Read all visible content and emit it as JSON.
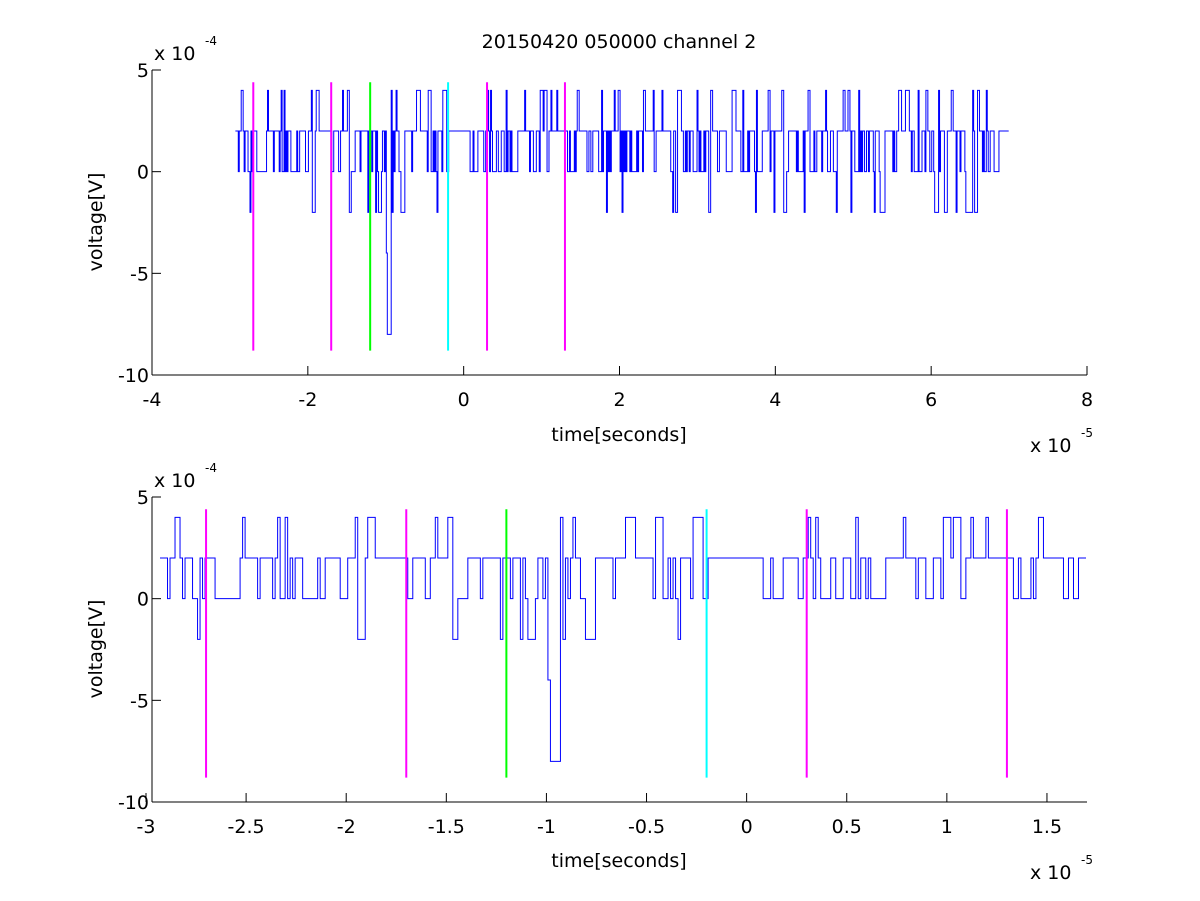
{
  "figure": {
    "title": "20150420 050000 channel 2"
  },
  "chart_data": [
    {
      "type": "line",
      "xlabel": "time[seconds]",
      "ylabel": "voltage[V]",
      "x_exponent_label": "x 10",
      "x_exponent": "-5",
      "y_exponent_label": "x 10",
      "y_exponent": "-4",
      "xlim": [
        -4,
        8
      ],
      "ylim": [
        -10,
        5
      ],
      "xticks": [
        -4,
        -2,
        0,
        2,
        4,
        6,
        8
      ],
      "xtick_labels": [
        "-4",
        "-2",
        "0",
        "2",
        "4",
        "6",
        "8"
      ],
      "yticks": [
        -10,
        -5,
        0,
        5
      ],
      "ytick_labels": [
        "-10",
        "-5",
        "0",
        "5"
      ],
      "grid": false,
      "signal": {
        "color": "#0000ff",
        "x_start": -2.93,
        "x_end": 7.0,
        "dt": 0.0125,
        "levels": [
          -2,
          0,
          2,
          4
        ],
        "dip": {
          "x": -0.98,
          "y": -8
        }
      },
      "markers": [
        {
          "x": -2.7,
          "color": "#ff00ff",
          "y_top": 4.4,
          "y_bottom": -8.8
        },
        {
          "x": -1.7,
          "color": "#ff00ff",
          "y_top": 4.4,
          "y_bottom": -8.8
        },
        {
          "x": -1.2,
          "color": "#00ff00",
          "y_top": 4.4,
          "y_bottom": -8.8
        },
        {
          "x": -0.2,
          "color": "#00ffff",
          "y_top": 4.4,
          "y_bottom": -8.8
        },
        {
          "x": 0.3,
          "color": "#ff00ff",
          "y_top": 4.4,
          "y_bottom": -8.8
        },
        {
          "x": 1.3,
          "color": "#ff00ff",
          "y_top": 4.4,
          "y_bottom": -8.8
        }
      ]
    },
    {
      "type": "line",
      "xlabel": "time[seconds]",
      "ylabel": "voltage[V]",
      "x_exponent_label": "x 10",
      "x_exponent": "-5",
      "y_exponent_label": "x 10",
      "y_exponent": "-4",
      "xlim": [
        -2.97,
        1.7
      ],
      "ylim": [
        -10,
        5
      ],
      "xticks": [
        -3,
        -2.5,
        -2,
        -1.5,
        -1,
        -0.5,
        0,
        0.5,
        1,
        1.5
      ],
      "xtick_labels": [
        "-3",
        "-2.5",
        "-2",
        "-1.5",
        "-1",
        "-0.5",
        "0",
        "0.5",
        "1",
        "1.5"
      ],
      "yticks": [
        -10,
        -5,
        0,
        5
      ],
      "ytick_labels": [
        "-10",
        "-5",
        "0",
        "5"
      ],
      "grid": false,
      "signal": {
        "color": "#0000ff",
        "x_start": -2.93,
        "x_end": 1.7,
        "dt": 0.0125,
        "levels": [
          -2,
          0,
          2,
          4
        ],
        "dip": {
          "x": -0.98,
          "y": -8
        }
      },
      "markers": [
        {
          "x": -2.7,
          "color": "#ff00ff",
          "y_top": 4.4,
          "y_bottom": -8.8
        },
        {
          "x": -1.7,
          "color": "#ff00ff",
          "y_top": 4.4,
          "y_bottom": -8.8
        },
        {
          "x": -1.2,
          "color": "#00ff00",
          "y_top": 4.4,
          "y_bottom": -8.8
        },
        {
          "x": -0.2,
          "color": "#00ffff",
          "y_top": 4.4,
          "y_bottom": -8.8
        },
        {
          "x": 0.3,
          "color": "#ff00ff",
          "y_top": 4.4,
          "y_bottom": -8.8
        },
        {
          "x": 1.3,
          "color": "#ff00ff",
          "y_top": 4.4,
          "y_bottom": -8.8
        }
      ]
    }
  ]
}
